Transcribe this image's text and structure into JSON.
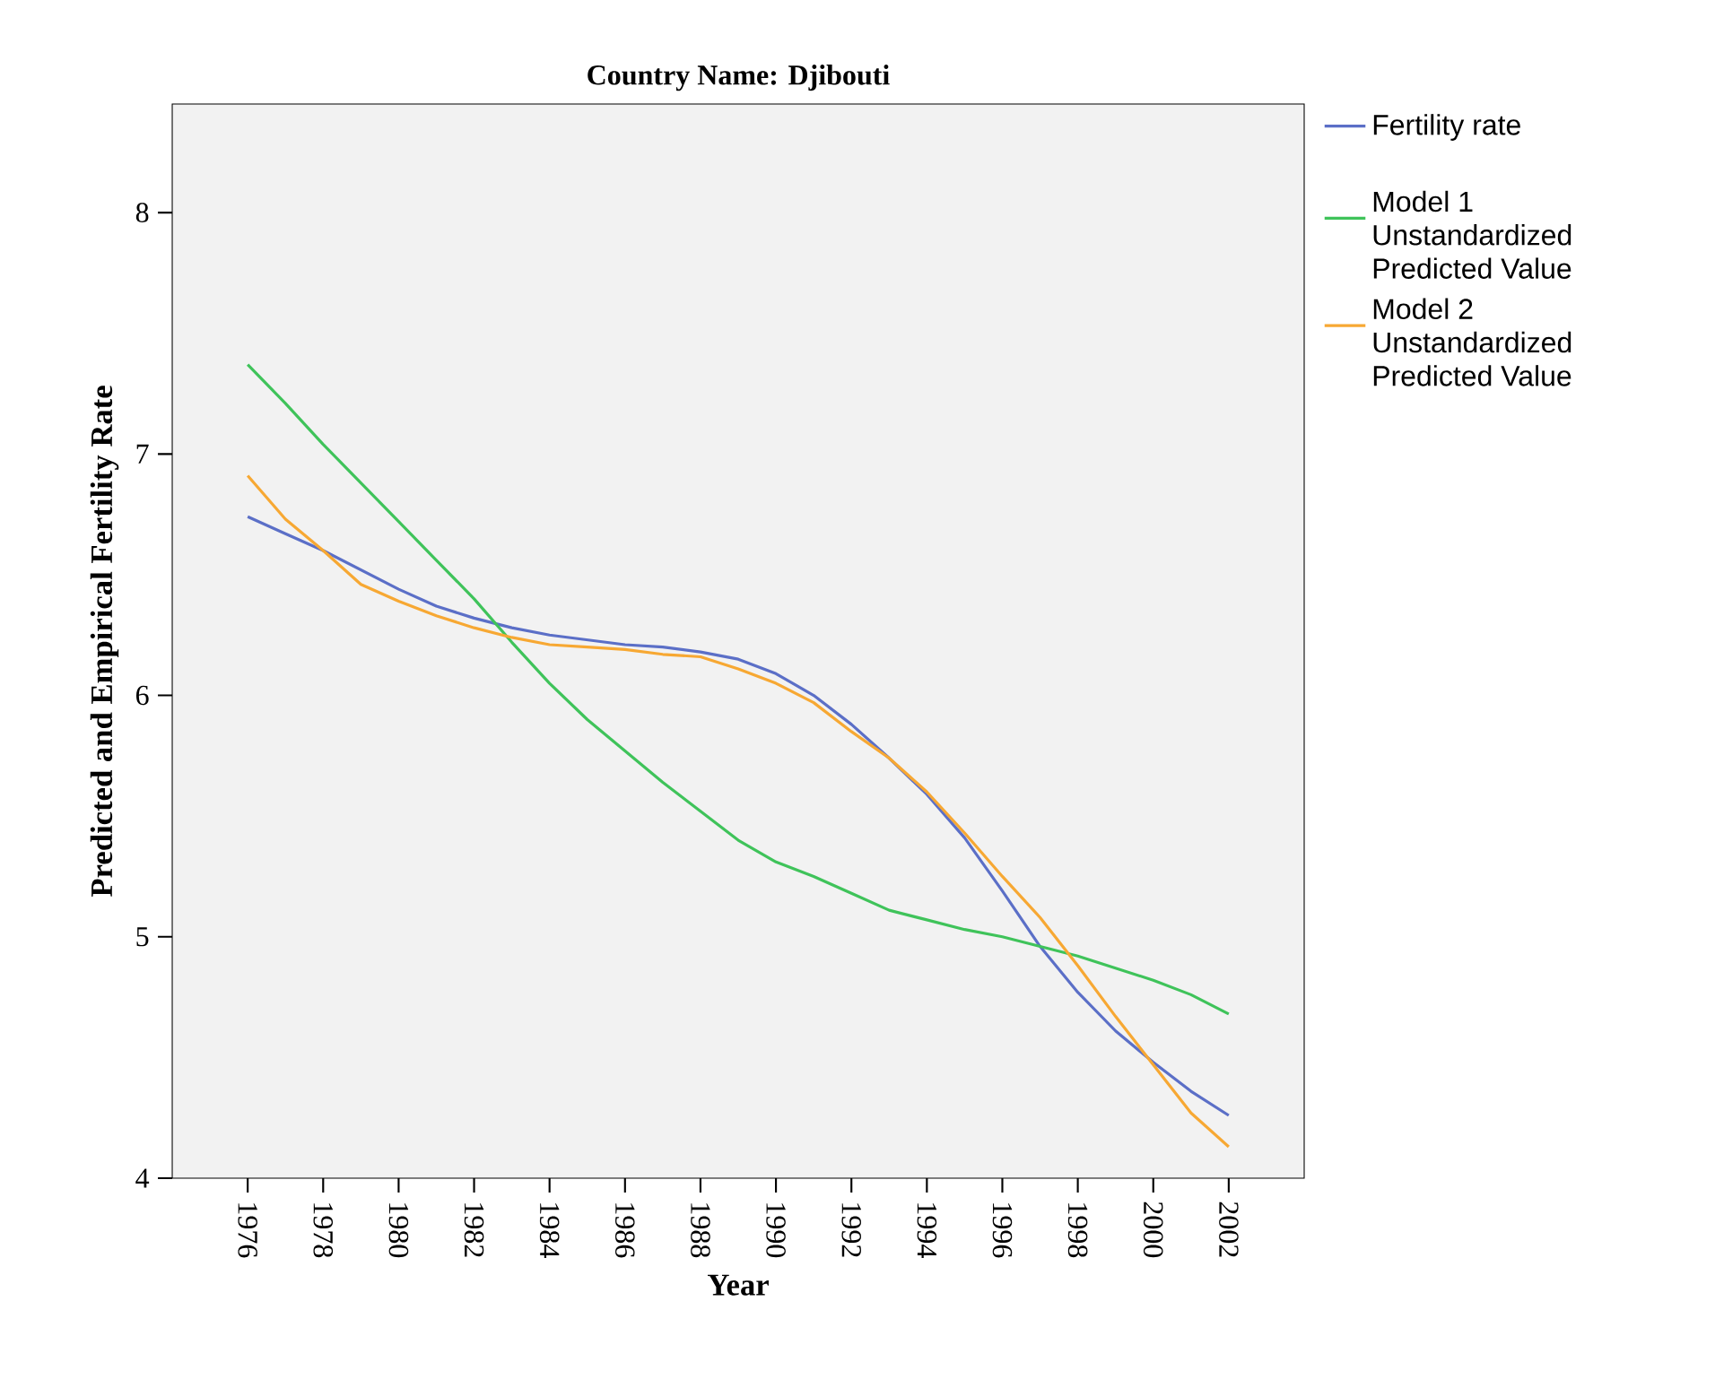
{
  "chart_data": {
    "type": "line",
    "title": "Country Name: Djibouti",
    "xlabel": "Year",
    "ylabel": "Predicted and Empirical Fertility Rate",
    "x": [
      1976,
      1977,
      1978,
      1979,
      1980,
      1981,
      1982,
      1983,
      1984,
      1985,
      1986,
      1987,
      1988,
      1989,
      1990,
      1991,
      1992,
      1993,
      1994,
      1995,
      1996,
      1997,
      1998,
      1999,
      2000,
      2001,
      2002
    ],
    "series": [
      {
        "name": "Fertility rate",
        "color": "#5b6fc7",
        "values": [
          6.74,
          6.67,
          6.6,
          6.52,
          6.44,
          6.37,
          6.32,
          6.28,
          6.25,
          6.23,
          6.21,
          6.2,
          6.18,
          6.15,
          6.09,
          6.0,
          5.88,
          5.74,
          5.59,
          5.41,
          5.19,
          4.96,
          4.77,
          4.61,
          4.48,
          4.36,
          4.26
        ]
      },
      {
        "name": "Model 1 Unstandardized Predicted Value",
        "color": "#3fc35a",
        "values": [
          7.37,
          7.21,
          7.04,
          6.88,
          6.72,
          6.56,
          6.4,
          6.22,
          6.05,
          5.9,
          5.77,
          5.64,
          5.52,
          5.4,
          5.31,
          5.25,
          5.18,
          5.11,
          5.07,
          5.03,
          5.0,
          4.96,
          4.92,
          4.87,
          4.82,
          4.76,
          4.68
        ]
      },
      {
        "name": "Model 2 Unstandardized Predicted Value",
        "color": "#f7a833",
        "values": [
          6.91,
          6.73,
          6.6,
          6.46,
          6.39,
          6.33,
          6.28,
          6.24,
          6.21,
          6.2,
          6.19,
          6.17,
          6.16,
          6.11,
          6.05,
          5.97,
          5.85,
          5.74,
          5.6,
          5.43,
          5.25,
          5.08,
          4.88,
          4.67,
          4.47,
          4.27,
          4.13
        ]
      }
    ],
    "xlim": [
      1974,
      2004
    ],
    "ylim": [
      4,
      8.45
    ],
    "xticks": [
      1976,
      1978,
      1980,
      1982,
      1984,
      1986,
      1988,
      1990,
      1992,
      1994,
      1996,
      1998,
      2000,
      2002
    ],
    "yticks": [
      4,
      5,
      6,
      7,
      8
    ],
    "grid": false,
    "legend": "top right",
    "marker": "none",
    "line_style": "solid"
  }
}
